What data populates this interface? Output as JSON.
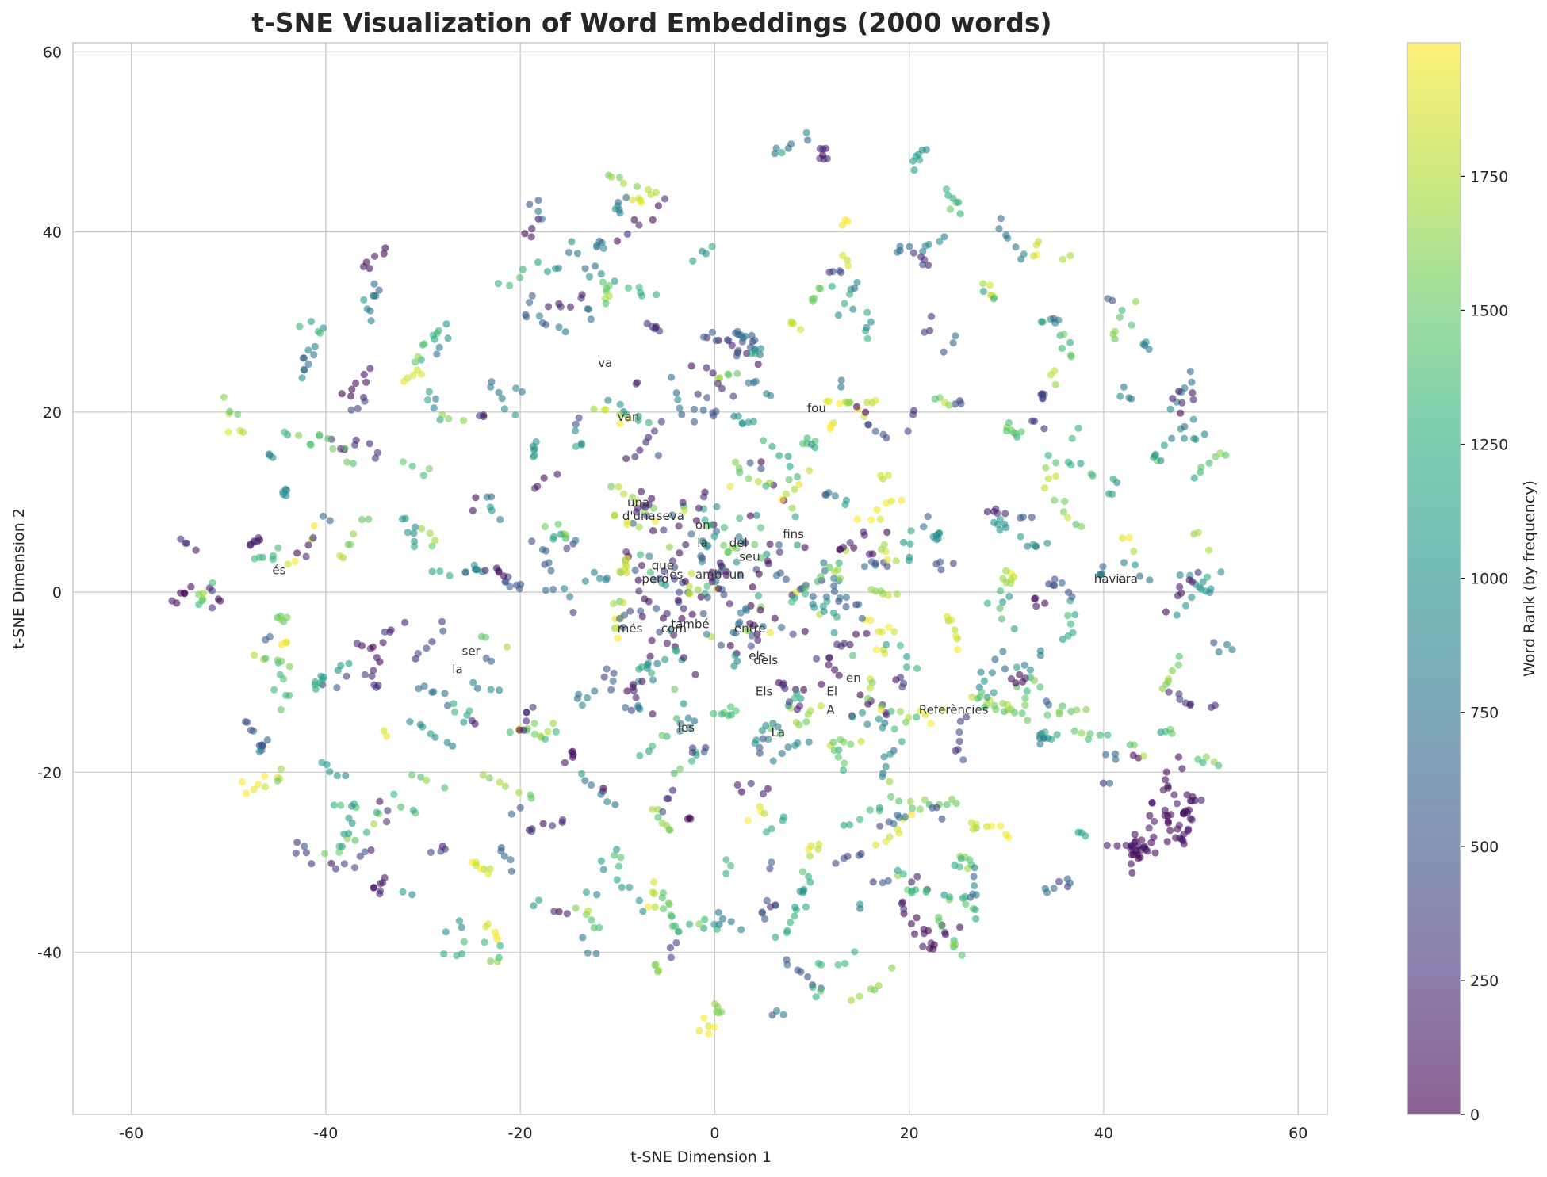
{
  "chart_data": {
    "type": "scatter",
    "title": "t-SNE Visualization of Word Embeddings (2000 words)",
    "xlabel": "t-SNE Dimension 1",
    "ylabel": "t-SNE Dimension 2",
    "xlim": [
      -66,
      63
    ],
    "ylim": [
      -58,
      61
    ],
    "xticks": [
      -60,
      -40,
      -20,
      0,
      20,
      40,
      60
    ],
    "yticks": [
      -40,
      -20,
      0,
      20,
      40,
      60
    ],
    "xtick_labels": [
      "-60",
      "-40",
      "-20",
      "0",
      "20",
      "40",
      "60"
    ],
    "ytick_labels": [
      "-40",
      "-20",
      "0",
      "20",
      "40",
      "60"
    ],
    "grid": true,
    "point_count": 2000,
    "colormap": "viridis",
    "point_alpha": 0.6,
    "colorbar": {
      "label": "Word Rank (by frequency)",
      "range": [
        0,
        1999
      ],
      "ticks": [
        0,
        250,
        500,
        750,
        1000,
        1250,
        1500,
        1750
      ],
      "tick_labels": [
        "0",
        "250",
        "500",
        "750",
        "1000",
        "1250",
        "1500",
        "1750"
      ]
    },
    "word_labels": [
      {
        "text": "va",
        "x": -12,
        "y": 25
      },
      {
        "text": "van",
        "x": -10,
        "y": 19
      },
      {
        "text": "fou",
        "x": 9.5,
        "y": 20
      },
      {
        "text": "una",
        "x": -9,
        "y": 9.5
      },
      {
        "text": "d'una",
        "x": -9.5,
        "y": 8
      },
      {
        "text": "seva",
        "x": -6,
        "y": 8
      },
      {
        "text": "on",
        "x": -2,
        "y": 7
      },
      {
        "text": "fins",
        "x": 7,
        "y": 6
      },
      {
        "text": "la",
        "x": -1.8,
        "y": 5
      },
      {
        "text": "del",
        "x": 1.5,
        "y": 5
      },
      {
        "text": "que",
        "x": -6.5,
        "y": 2.5
      },
      {
        "text": "seu",
        "x": 2.5,
        "y": 3.5
      },
      {
        "text": "les",
        "x": -5,
        "y": 1.5
      },
      {
        "text": "amb",
        "x": -2,
        "y": 1.5
      },
      {
        "text": "un",
        "x": 1.5,
        "y": 1.5
      },
      {
        "text": "però",
        "x": -7.5,
        "y": 1
      },
      {
        "text": "és",
        "x": -45.5,
        "y": 2
      },
      {
        "text": "havia",
        "x": 39,
        "y": 1
      },
      {
        "text": "era",
        "x": 41.5,
        "y": 1
      },
      {
        "text": "més",
        "x": -10,
        "y": -4.5
      },
      {
        "text": "també",
        "x": -4.5,
        "y": -4
      },
      {
        "text": "com",
        "x": -5.5,
        "y": -4.5
      },
      {
        "text": "entre",
        "x": 2,
        "y": -4.5
      },
      {
        "text": "ser",
        "x": -26,
        "y": -7
      },
      {
        "text": "la",
        "x": -27,
        "y": -9
      },
      {
        "text": "els",
        "x": 3.5,
        "y": -7.5
      },
      {
        "text": "dels",
        "x": 4,
        "y": -8
      },
      {
        "text": "en",
        "x": 13.5,
        "y": -10
      },
      {
        "text": "El",
        "x": 11.5,
        "y": -11.5
      },
      {
        "text": "Els",
        "x": 4.2,
        "y": -11.5
      },
      {
        "text": "A",
        "x": 11.5,
        "y": -13.5
      },
      {
        "text": "Referències",
        "x": 21,
        "y": -13.5
      },
      {
        "text": "les",
        "x": -3.8,
        "y": -15.5
      },
      {
        "text": "La",
        "x": 5.8,
        "y": -16
      }
    ]
  }
}
